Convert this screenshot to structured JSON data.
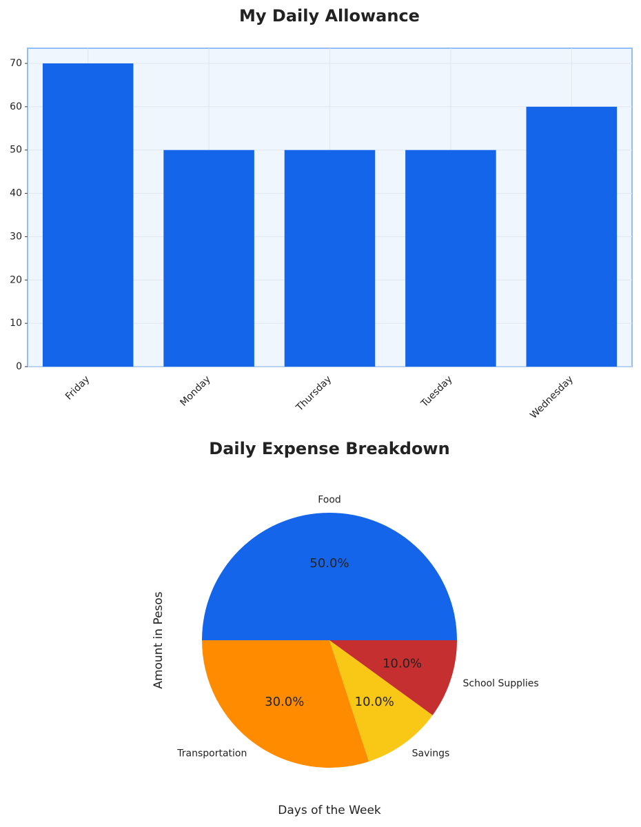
{
  "chart_data": [
    {
      "type": "bar",
      "title": "My Daily Allowance",
      "categories": [
        "Friday",
        "Monday",
        "Thursday",
        "Tuesday",
        "Wednesday"
      ],
      "values": [
        70,
        50,
        50,
        50,
        60
      ],
      "color": "#1565ea",
      "ylim": [
        0,
        73.5
      ],
      "yticks": [
        0,
        10,
        20,
        30,
        40,
        50,
        60,
        70
      ],
      "grid": true
    },
    {
      "type": "pie",
      "title": "Daily Expense Breakdown",
      "labels": [
        "Food",
        "Transportation",
        "Savings",
        "School Supplies"
      ],
      "values": [
        50,
        30,
        10,
        10
      ],
      "value_labels": [
        "50.0%",
        "30.0%",
        "10.0%",
        "10.0%"
      ],
      "colors": [
        "#1565ea",
        "#ff8c00",
        "#f9c816",
        "#c62f2f"
      ],
      "x_label": "Days of the Week",
      "y_label": "Amount in Pesos"
    }
  ]
}
